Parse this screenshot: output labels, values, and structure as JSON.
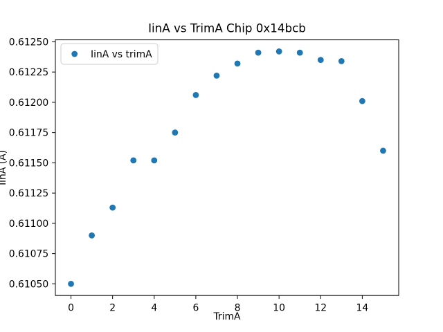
{
  "figure": {
    "background": "#ffffff"
  },
  "chart_data": {
    "type": "scatter",
    "title": "IinA vs TrimA Chip 0x14bcb",
    "xlabel": "TrimA",
    "ylabel": "IinA (A)",
    "legend": {
      "entries": [
        "IinA vs trimA"
      ],
      "position": "upper-left"
    },
    "series": [
      {
        "name": "IinA vs trimA",
        "marker": "o",
        "marker_color": "#1f77b4",
        "x": [
          0,
          1,
          2,
          3,
          4,
          5,
          6,
          7,
          8,
          9,
          10,
          11,
          12,
          13,
          14,
          15
        ],
        "y": [
          0.6105,
          0.6109,
          0.61113,
          0.61152,
          0.61152,
          0.61175,
          0.61206,
          0.61222,
          0.61232,
          0.61241,
          0.61242,
          0.61241,
          0.61235,
          0.61234,
          0.61201,
          0.6116
        ]
      }
    ],
    "xlim": [
      -0.75,
      15.75
    ],
    "ylim": [
      0.610404,
      0.612516
    ],
    "xticks": [
      0,
      2,
      4,
      6,
      8,
      10,
      12,
      14
    ],
    "xtick_labels": [
      "0",
      "2",
      "4",
      "6",
      "8",
      "10",
      "12",
      "14"
    ],
    "yticks": [
      0.6105,
      0.61075,
      0.611,
      0.61125,
      0.6115,
      0.61175,
      0.612,
      0.61225,
      0.6125
    ],
    "ytick_labels": [
      "0.61050",
      "0.61075",
      "0.61100",
      "0.61125",
      "0.61150",
      "0.61175",
      "0.61200",
      "0.61225",
      "0.61250"
    ],
    "grid": false,
    "axis_color": "#000000",
    "text_color": "#000000",
    "legend_border_color": "#cccccc",
    "legend_background": "#ffffff"
  }
}
